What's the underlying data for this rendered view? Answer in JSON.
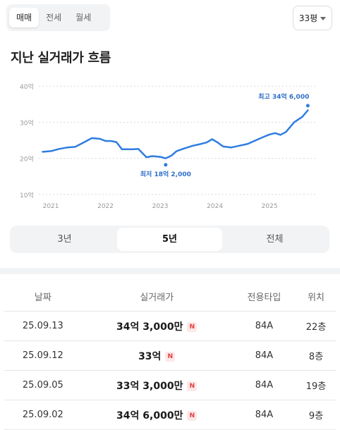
{
  "deal_tabs": [
    {
      "label": "매매",
      "active": true
    },
    {
      "label": "전세",
      "active": false
    },
    {
      "label": "월세",
      "active": false
    }
  ],
  "size_selector": {
    "label": "33평",
    "icon": "caret-down-icon"
  },
  "chart_title": "지난 실거래가 흐름",
  "chart_data": {
    "type": "line",
    "y_unit": "억",
    "y_ticks": [
      "40억",
      "30억",
      "20억",
      "10억"
    ],
    "y_tick_values": [
      40,
      30,
      20,
      10
    ],
    "ylim": [
      8,
      42
    ],
    "x_ticks": [
      "2021",
      "2022",
      "2023",
      "2024",
      "2025"
    ],
    "x_tick_values": [
      2021,
      2022,
      2023,
      2024,
      2025
    ],
    "xlim": [
      2020.78,
      2025.85
    ],
    "grid": true,
    "series": [
      {
        "color": "#2e7de0",
        "x": [
          2020.85,
          2021.0,
          2021.15,
          2021.3,
          2021.45,
          2021.6,
          2021.75,
          2021.9,
          2022.0,
          2022.1,
          2022.2,
          2022.3,
          2022.4,
          2022.5,
          2022.6,
          2022.75,
          2022.85,
          2023.0,
          2023.1,
          2023.2,
          2023.3,
          2023.45,
          2023.6,
          2023.75,
          2023.85,
          2023.95,
          2024.05,
          2024.15,
          2024.3,
          2024.45,
          2024.6,
          2024.75,
          2024.9,
          2025.0,
          2025.1,
          2025.2,
          2025.3,
          2025.45,
          2025.6,
          2025.7
        ],
        "values": [
          21.8,
          22.0,
          22.6,
          23.0,
          23.2,
          24.4,
          25.6,
          25.4,
          24.8,
          24.8,
          24.5,
          22.5,
          22.5,
          22.5,
          22.6,
          20.3,
          20.6,
          20.4,
          20.0,
          20.7,
          22.0,
          22.8,
          23.5,
          24.0,
          24.4,
          25.3,
          24.4,
          23.3,
          23.0,
          23.5,
          24.0,
          25.0,
          26.0,
          26.6,
          27.0,
          26.5,
          27.3,
          30.0,
          31.5,
          33.3
        ]
      }
    ],
    "annotations": [
      {
        "text": "최고 34억 6,000",
        "x": 2025.7,
        "y": 34.6,
        "position": "above-left"
      },
      {
        "text": "최저 18억 2,000",
        "x": 2023.1,
        "y": 18.2,
        "position": "below"
      }
    ]
  },
  "period_tabs": [
    {
      "label": "3년",
      "active": false
    },
    {
      "label": "5년",
      "active": true
    },
    {
      "label": "전체",
      "active": false
    }
  ],
  "table": {
    "headers": [
      "날짜",
      "실거래가",
      "전용타입",
      "위치"
    ],
    "rows": [
      {
        "date": "25.09.13",
        "price": "34억 3,000만",
        "badge": "N",
        "type": "84A",
        "floor": "22층"
      },
      {
        "date": "25.09.12",
        "price": "33억",
        "badge": "N",
        "type": "84A",
        "floor": "8층"
      },
      {
        "date": "25.09.05",
        "price": "33억 3,000만",
        "badge": "N",
        "type": "84A",
        "floor": "19층"
      },
      {
        "date": "25.09.02",
        "price": "34억 6,000만",
        "badge": "N",
        "type": "84A",
        "floor": "9층"
      }
    ]
  }
}
